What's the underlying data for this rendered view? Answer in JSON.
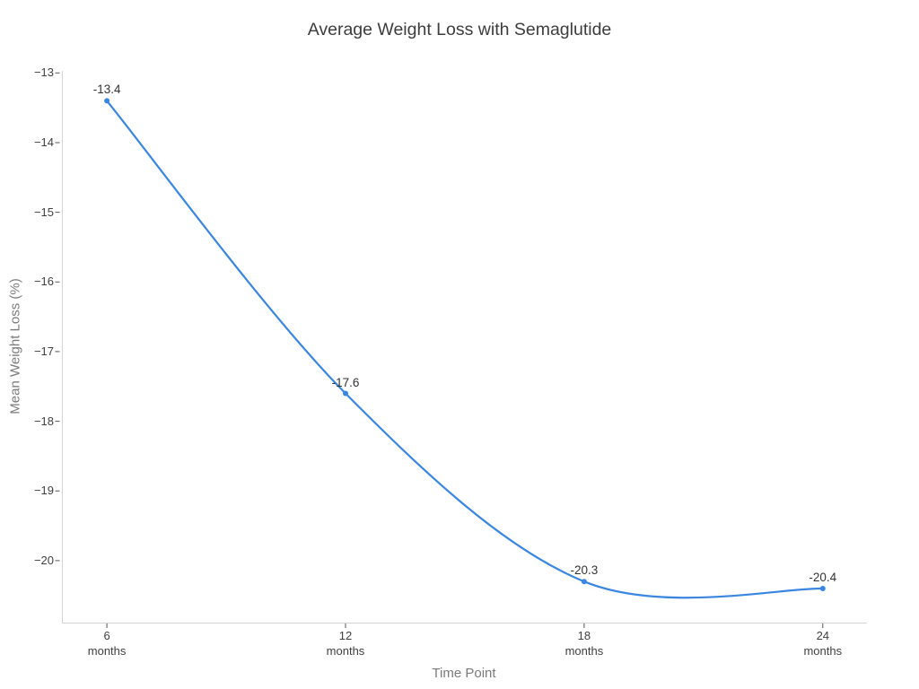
{
  "chart_data": {
    "type": "line",
    "title": "Average Weight Loss with Semaglutide",
    "xlabel": "Time Point",
    "ylabel": "Mean Weight Loss (%)",
    "x": [
      6,
      12,
      18,
      24
    ],
    "x_tick_labels": [
      [
        "6",
        "months"
      ],
      [
        "12",
        "months"
      ],
      [
        "18",
        "months"
      ],
      [
        "24",
        "months"
      ]
    ],
    "y_ticks": [
      -13,
      -14,
      -15,
      -16,
      -17,
      -18,
      -19,
      -20
    ],
    "y_tick_labels": [
      "−13",
      "−14",
      "−15",
      "−16",
      "−17",
      "−18",
      "−19",
      "−20"
    ],
    "series": [
      {
        "name": "Mean Weight Loss",
        "values": [
          -13.4,
          -17.6,
          -20.3,
          -20.4
        ]
      }
    ],
    "point_labels": [
      "-13.4",
      "-17.6",
      "-20.3",
      "-20.4"
    ],
    "xlim": [
      4.87,
      25.11
    ],
    "ylim": [
      -20.89,
      -12.97
    ],
    "grid": false,
    "legend": "none",
    "curve": "spline",
    "marker": "circle",
    "colors": {
      "line": "#3a86e0",
      "spine": "#d4d4d4",
      "tick": "#555555",
      "tick_label": "#3f3f3f",
      "axis_title": "#7b7b7b",
      "title": "#3d3d3d",
      "point_label": "#333333",
      "background": "#ffffff"
    }
  }
}
